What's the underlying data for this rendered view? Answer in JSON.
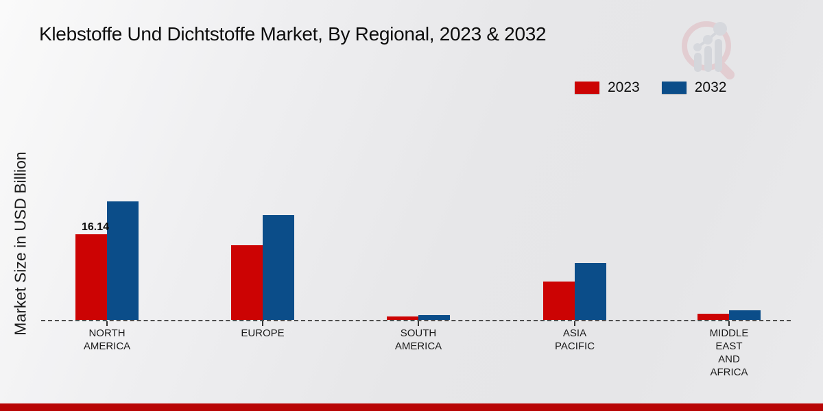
{
  "page": {
    "title": "Klebstoffe Und Dichtstoffe Market, By Regional, 2023 & 2032",
    "ylabel": "Market Size in USD Billion"
  },
  "icons": {
    "watermark": "bar-chart-magnifier-logo"
  },
  "colors": {
    "series_2023": "#cc0303",
    "series_2032": "#0b4d89",
    "footer_bar": "#b80505",
    "baseline": "#4d4d4d",
    "background_light": "#fafafa",
    "background_dark": "#e6e6e8"
  },
  "footer": {
    "accent_bar": true
  },
  "chart_data": {
    "type": "bar",
    "title": "Klebstoffe Und Dichtstoffe Market, By Regional, 2023 & 2032",
    "xlabel": "",
    "ylabel": "Market Size in USD Billion",
    "ylim": [
      0,
      25
    ],
    "grid": false,
    "legend_position": "top-right",
    "baseline_style": "dashed",
    "categories": [
      "NORTH AMERICA",
      "EUROPE",
      "SOUTH AMERICA",
      "ASIA PACIFIC",
      "MIDDLE EAST AND AFRICA"
    ],
    "category_lines": [
      [
        "NORTH",
        "AMERICA"
      ],
      [
        "EUROPE"
      ],
      [
        "SOUTH",
        "AMERICA"
      ],
      [
        "ASIA",
        "PACIFIC"
      ],
      [
        "MIDDLE",
        "EAST",
        "AND",
        "AFRICA"
      ]
    ],
    "series": [
      {
        "name": "2023",
        "color": "#cc0303",
        "values": [
          16.14,
          14.1,
          0.62,
          7.25,
          1.18
        ],
        "data_labels": [
          "16.14",
          "",
          "",
          "",
          ""
        ]
      },
      {
        "name": "2032",
        "color": "#0b4d89",
        "values": [
          22.3,
          19.8,
          0.95,
          10.7,
          1.85
        ],
        "data_labels": [
          "",
          "",
          "",
          "",
          ""
        ]
      }
    ]
  }
}
